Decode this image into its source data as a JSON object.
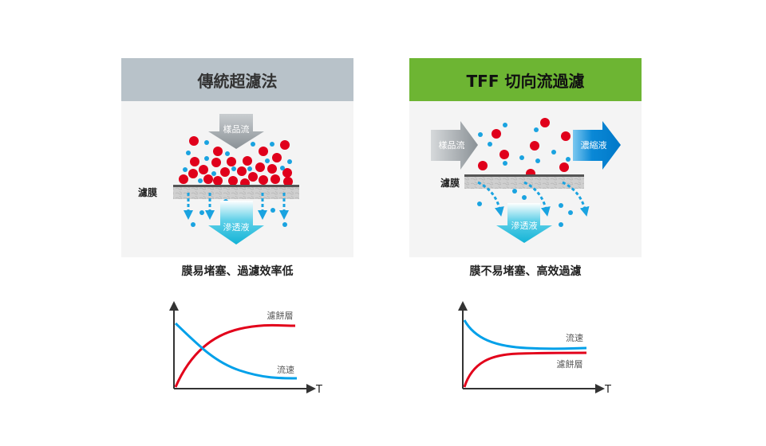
{
  "colors": {
    "header_traditional": "#b8c2c9",
    "header_tff": "#6db533",
    "particle_red": "#e0001b",
    "particle_blue": "#1aa3e0",
    "curve_red": "#e2001a",
    "curve_blue": "#00a0e9",
    "concentrate": "#0080d0",
    "permeate": "#19b6d8"
  },
  "traditional": {
    "title": "傳統超濾法",
    "sample_flow": "樣品流",
    "membrane": "濾膜",
    "permeate": "滲透液",
    "caption": "膜易堵塞、過濾效率低",
    "graph": {
      "cake_label": "濾餅層",
      "flux_label": "流速",
      "x_axis": "T"
    }
  },
  "tff": {
    "title": "TFF 切向流過濾",
    "sample_flow": "樣品流",
    "concentrate": "濃縮液",
    "membrane": "濾膜",
    "permeate": "滲透液",
    "caption": "膜不易堵塞、高效過濾",
    "graph": {
      "flux_label": "流速",
      "cake_label": "濾餅層",
      "x_axis": "T"
    }
  }
}
